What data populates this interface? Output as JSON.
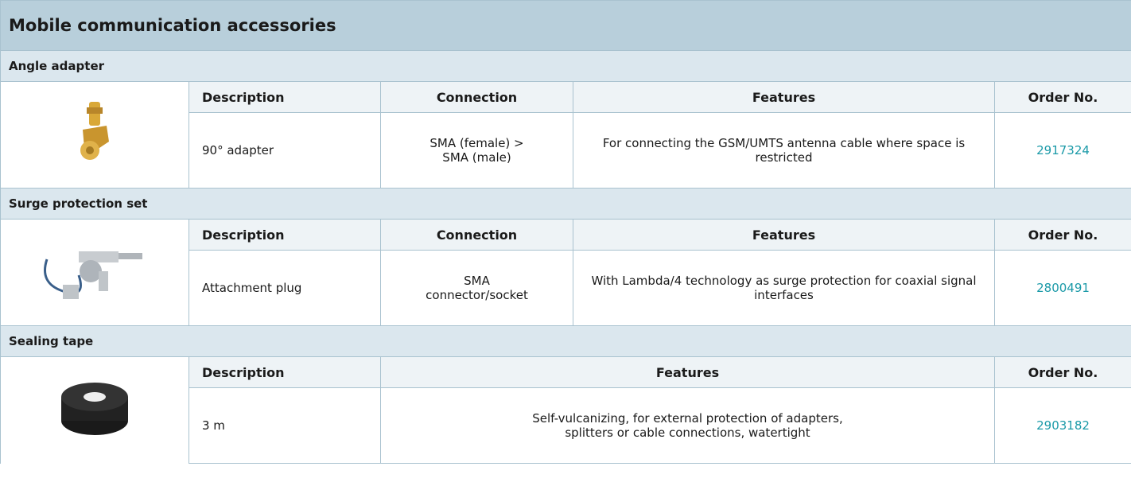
{
  "title": "Mobile communication accessories",
  "sections": [
    {
      "name": "Angle adapter",
      "headers": [
        "Description",
        "Connection",
        "Features",
        "Order No."
      ],
      "row": [
        "90° adapter",
        "SMA (female) > SMA (male)",
        "For connecting the GSM/UMTS antenna cable where space is restricted",
        "2917324"
      ]
    },
    {
      "name": "Surge protection set",
      "headers": [
        "Description",
        "Connection",
        "Features",
        "Order No."
      ],
      "row": [
        "Attachment plug",
        "SMA connector/socket",
        "With Lambda/4 technology as surge protection for coaxial signal interfaces",
        "2800491"
      ]
    },
    {
      "name": "Sealing tape",
      "headers": [
        "Description",
        "Features",
        "Order No."
      ],
      "row": [
        "3 m",
        "Self-vulcanizing, for external protection of adapters, splitters or cable connections, watertight",
        "2903182"
      ]
    }
  ]
}
